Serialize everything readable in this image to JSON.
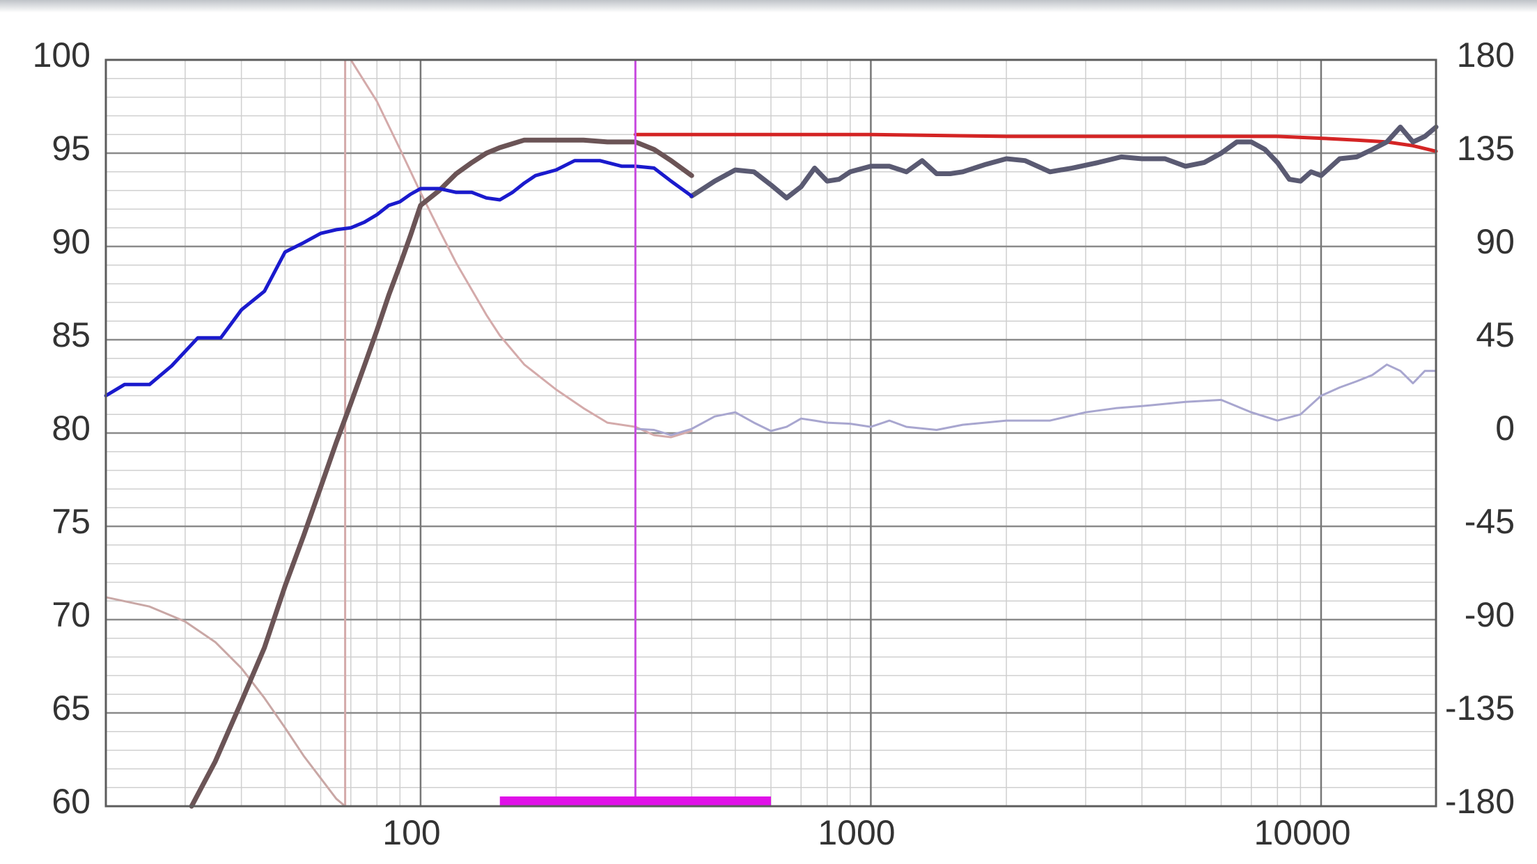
{
  "chart_data": {
    "type": "line",
    "title": "",
    "xlabel": "",
    "ylabel": "",
    "y2label": "",
    "x_scale": "log",
    "xlim": [
      20,
      18000
    ],
    "ylim": [
      60,
      100
    ],
    "y2lim": [
      -180,
      180
    ],
    "grid": true,
    "x_tick_labels": [
      {
        "value": 100,
        "label": "100"
      },
      {
        "value": 1000,
        "label": "1000"
      },
      {
        "value": 10000,
        "label": "10000"
      }
    ],
    "y_tick_labels": [
      "60",
      "65",
      "70",
      "75",
      "80",
      "85",
      "90",
      "95",
      "100"
    ],
    "y2_tick_labels": [
      "-180",
      "-135",
      "-90",
      "-45",
      "0",
      "45",
      "90",
      "135",
      "180"
    ],
    "marker_frequency": 300,
    "marker_band": [
      150,
      600
    ],
    "series": [
      {
        "id": "measured-spl",
        "axis": "left",
        "color": "#1a1acd",
        "width": 5,
        "x": [
          20,
          22,
          25,
          28,
          32,
          36,
          40,
          45,
          50,
          55,
          60,
          65,
          70,
          75,
          80,
          85,
          90,
          95,
          100,
          110,
          120,
          130,
          140,
          150,
          160,
          170,
          180,
          200,
          220,
          250,
          280,
          300,
          330,
          360,
          400
        ],
        "y": [
          82,
          82.6,
          82.6,
          83.6,
          85.1,
          85.1,
          86.6,
          87.6,
          89.7,
          90.2,
          90.7,
          90.9,
          91,
          91.3,
          91.7,
          92.2,
          92.4,
          92.8,
          93.1,
          93.1,
          92.9,
          92.9,
          92.6,
          92.5,
          92.9,
          93.4,
          93.8,
          94.1,
          94.6,
          94.6,
          94.3,
          94.3,
          94.2,
          93.5,
          92.7
        ]
      },
      {
        "id": "combined-spl",
        "axis": "left",
        "color": "#5a5a72",
        "width": 7,
        "x": [
          400,
          450,
          500,
          550,
          600,
          650,
          700,
          750,
          800,
          850,
          900,
          1000,
          1100,
          1200,
          1300,
          1400,
          1500,
          1600,
          1800,
          2000,
          2200,
          2500,
          2800,
          3200,
          3600,
          4000,
          4500,
          5000,
          5500,
          6000,
          6500,
          7000,
          7500,
          8000,
          8500,
          9000,
          9500,
          10000,
          11000,
          12000,
          13000,
          14000,
          15000,
          16000,
          17000,
          18000
        ],
        "y": [
          92.7,
          93.5,
          94.1,
          94,
          93.3,
          92.6,
          93.2,
          94.2,
          93.5,
          93.6,
          94,
          94.3,
          94.3,
          94,
          94.6,
          93.9,
          93.9,
          94,
          94.4,
          94.7,
          94.6,
          94,
          94.2,
          94.5,
          94.8,
          94.7,
          94.7,
          94.3,
          94.5,
          95,
          95.6,
          95.6,
          95.2,
          94.5,
          93.6,
          93.5,
          94,
          93.8,
          94.7,
          94.8,
          95.2,
          95.6,
          96.4,
          95.6,
          95.9,
          96.4
        ]
      },
      {
        "id": "target-response",
        "axis": "left",
        "color": "#6b5456",
        "width": 7,
        "x": [
          31,
          35,
          40,
          45,
          50,
          55,
          60,
          65,
          70,
          75,
          80,
          85,
          90,
          95,
          100,
          110,
          120,
          130,
          140,
          150,
          170,
          200,
          230,
          260,
          300,
          330,
          360,
          400
        ],
        "y": [
          60,
          62.4,
          65.6,
          68.5,
          71.8,
          74.5,
          77.1,
          79.5,
          81.6,
          83.6,
          85.5,
          87.4,
          89,
          90.6,
          92.2,
          93,
          93.9,
          94.5,
          95,
          95.3,
          95.7,
          95.7,
          95.7,
          95.6,
          95.6,
          95.2,
          94.6,
          93.8
        ]
      },
      {
        "id": "target-response-high",
        "axis": "left",
        "color": "#d42424",
        "width": 5,
        "x": [
          300,
          500,
          1000,
          2000,
          5000,
          8000,
          10000,
          12000,
          14000,
          16000,
          18000
        ],
        "y": [
          96,
          96,
          96,
          95.9,
          95.9,
          95.9,
          95.8,
          95.7,
          95.6,
          95.4,
          95.1
        ]
      },
      {
        "id": "measured-phase",
        "axis": "right",
        "color": "#a8a6cf",
        "width": 3,
        "x": [
          300,
          330,
          360,
          400,
          450,
          500,
          550,
          600,
          650,
          700,
          750,
          800,
          900,
          1000,
          1100,
          1200,
          1400,
          1600,
          2000,
          2500,
          3000,
          3500,
          4000,
          5000,
          6000,
          7000,
          8000,
          9000,
          10000,
          11000,
          12000,
          13000,
          14000,
          15000,
          16000,
          17000,
          18000
        ],
        "y": [
          2,
          1.5,
          -1,
          2,
          8,
          10,
          5,
          1,
          3,
          7,
          6,
          5,
          4.5,
          3,
          6,
          3,
          1.5,
          4,
          6,
          6,
          10,
          12,
          13,
          15,
          16,
          10,
          6,
          9,
          18,
          22,
          25,
          28,
          33,
          30,
          24,
          30,
          30
        ]
      },
      {
        "id": "filter-phase-curve",
        "axis": "right",
        "color": "#d4aaaa",
        "width": 3,
        "x": [
          70,
          80,
          90,
          100,
          110,
          120,
          130,
          140,
          150,
          170,
          200,
          230,
          260,
          300,
          330,
          360,
          400
        ],
        "y": [
          180,
          160,
          137,
          116,
          98,
          82,
          69,
          57,
          47,
          33,
          21,
          12,
          5,
          3,
          -1,
          -2,
          1
        ]
      },
      {
        "id": "filter-low-curve",
        "axis": "left",
        "color": "#c9a7a5",
        "width": 3,
        "x": [
          20,
          25,
          30,
          35,
          40,
          45,
          50,
          55,
          60,
          65,
          68
        ],
        "y": [
          71.2,
          70.7,
          69.9,
          68.8,
          67.4,
          65.8,
          64.2,
          62.7,
          61.5,
          60.4,
          60
        ]
      },
      {
        "id": "filter-cutoff-line",
        "axis": "left",
        "color": "#d4aaaa",
        "width": 3,
        "x": [
          68,
          68
        ],
        "y": [
          60,
          100
        ]
      }
    ]
  }
}
